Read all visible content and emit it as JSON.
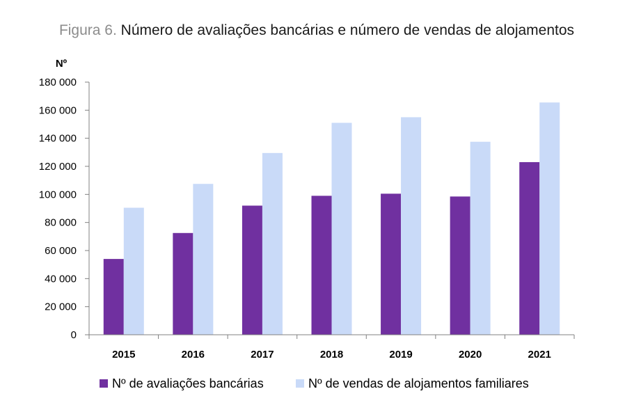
{
  "chart_data": {
    "type": "bar",
    "figure_label": "Figura 6.",
    "title": "Número de avaliações bancárias e número de vendas de alojamentos",
    "ylabel": "Nº",
    "xlabel": "",
    "categories": [
      "2015",
      "2016",
      "2017",
      "2018",
      "2019",
      "2020",
      "2021"
    ],
    "series": [
      {
        "name": "Nº de avaliações bancárias",
        "color": "#7030a0",
        "values": [
          54000,
          72500,
          92000,
          99000,
          100500,
          98500,
          123000
        ]
      },
      {
        "name": "Nº de vendas de alojamentos familiares",
        "color": "#c9daf8",
        "values": [
          90500,
          107500,
          129500,
          151000,
          155000,
          137500,
          165500
        ]
      }
    ],
    "ylim": [
      0,
      180000
    ],
    "yticks": [
      0,
      20000,
      40000,
      60000,
      80000,
      100000,
      120000,
      140000,
      160000,
      180000
    ],
    "ytick_labels": [
      "0",
      "20 000",
      "40 000",
      "60 000",
      "80 000",
      "100 000",
      "120 000",
      "140 000",
      "160 000",
      "180 000"
    ],
    "grid": false,
    "legend_position": "bottom"
  }
}
